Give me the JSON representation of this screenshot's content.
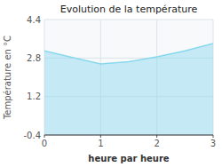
{
  "chart_data": {
    "type": "area",
    "title": "Evolution de la température",
    "x_label": "heure par heure",
    "y_label": "Température en °C",
    "x": [
      0,
      0.5,
      1.0,
      1.1,
      1.25,
      1.5,
      2.0,
      2.5,
      3.0
    ],
    "values": [
      3.1,
      2.82,
      2.55,
      2.57,
      2.6,
      2.65,
      2.85,
      3.1,
      3.4
    ],
    "xlim": [
      0,
      3
    ],
    "ylim": [
      -0.4,
      4.4
    ],
    "xticks": [
      0,
      1,
      2,
      3
    ],
    "yticks": [
      -0.4,
      1.2,
      2.8,
      4.4
    ],
    "color": "#88d8ed",
    "grid": true
  }
}
